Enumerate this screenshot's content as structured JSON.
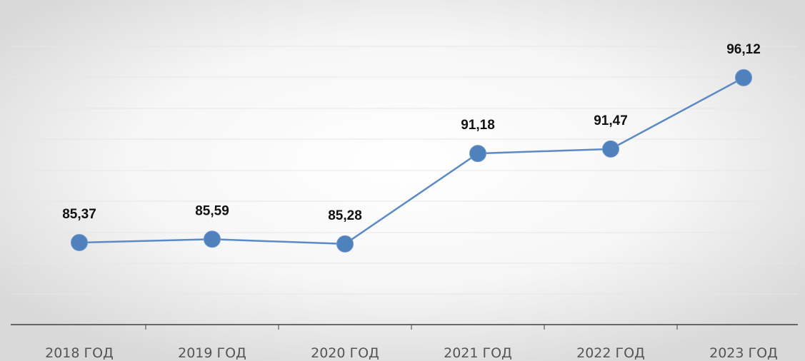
{
  "chart_data": {
    "type": "line",
    "categories": [
      "2018 ГОД",
      "2019 ГОД",
      "2020 ГОД",
      "2021 ГОД",
      "2022 ГОД",
      "2023 ГОД"
    ],
    "series": [
      {
        "values": [
          85.37,
          85.59,
          85.28,
          91.18,
          91.47,
          96.12
        ],
        "data_labels": [
          "85,37",
          "85,59",
          "85,28",
          "91,18",
          "91,47",
          "96,12"
        ]
      }
    ],
    "ylim": [
      79,
      98
    ],
    "grid": true,
    "legend": "none",
    "colors": {
      "line": "#5b8ac6",
      "marker": "#4f81bd",
      "axis": "#404040",
      "grid": "#e6e6e6",
      "background_center": "#ffffff",
      "background_edge": "#d9d9d9"
    }
  }
}
